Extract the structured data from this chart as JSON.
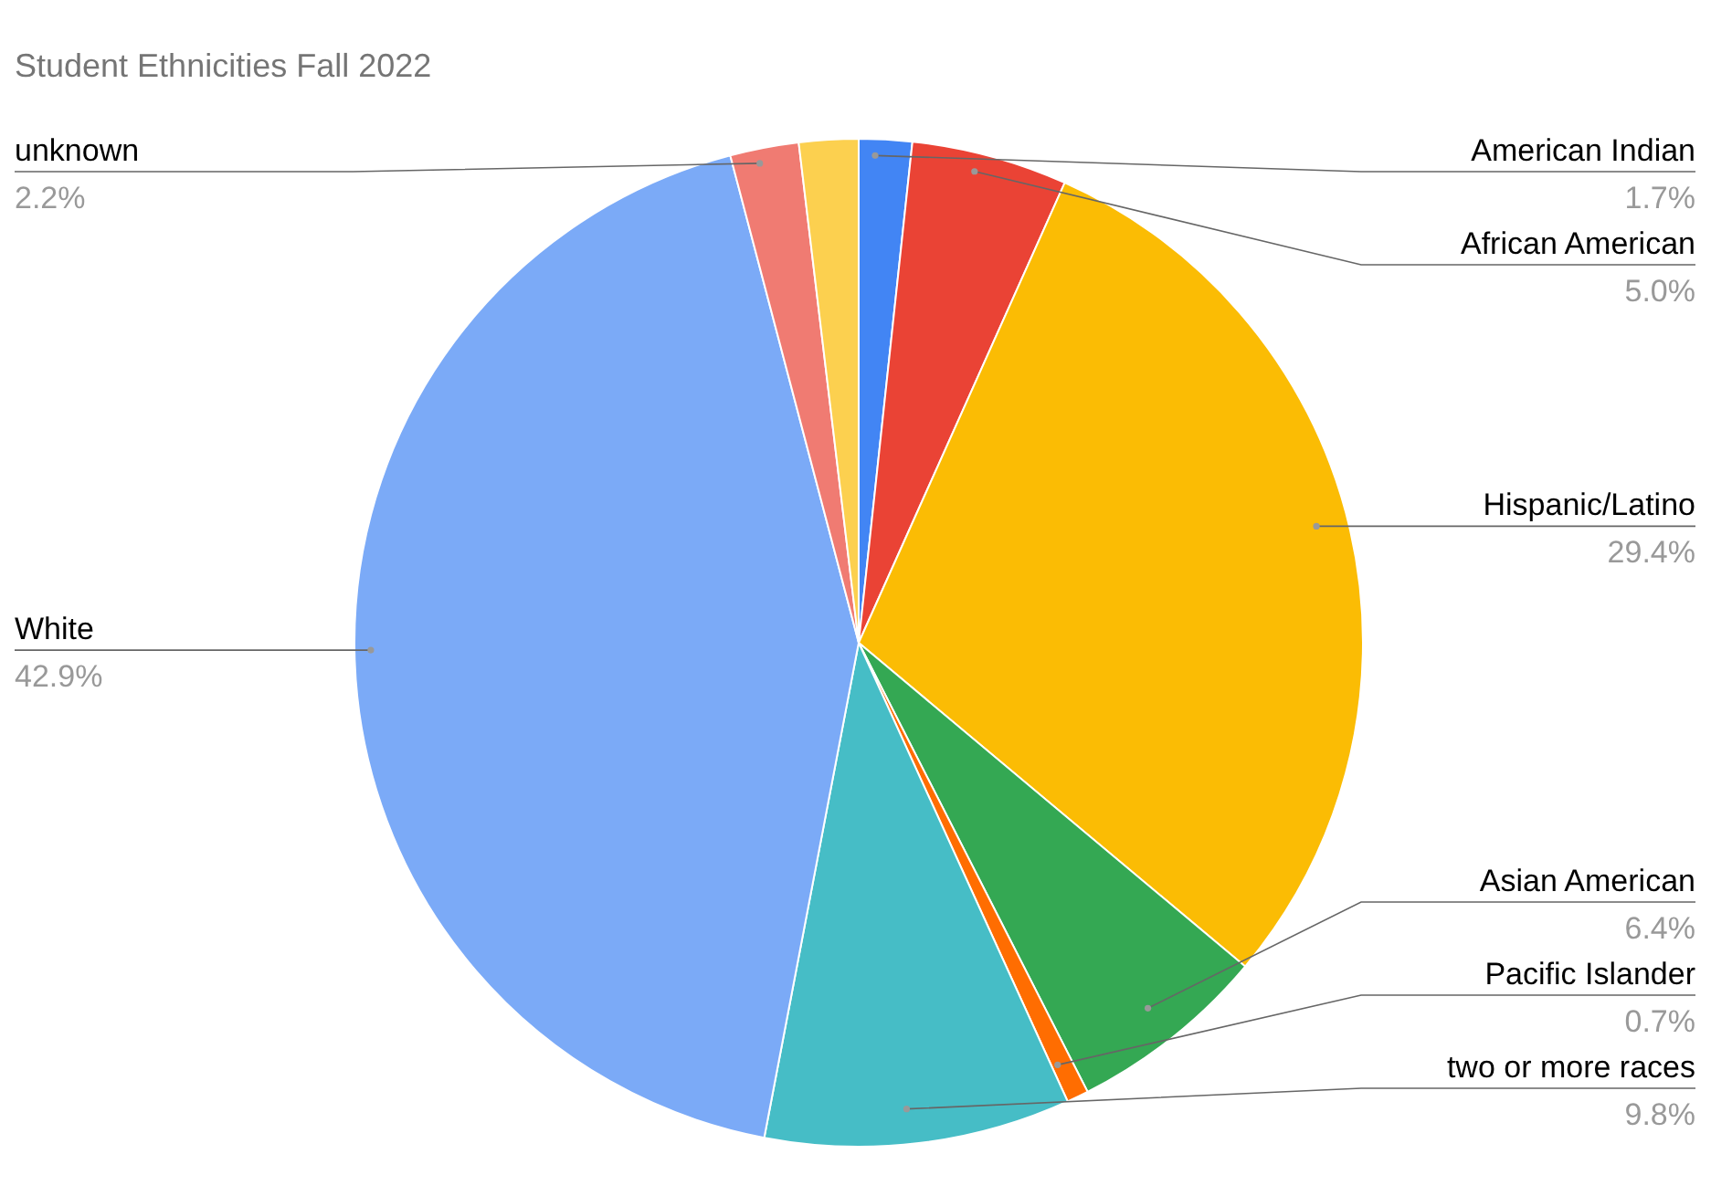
{
  "chart_data": {
    "type": "pie",
    "title": "Student Ethnicities Fall 2022",
    "categories": [
      "American Indian",
      "African American",
      "Hispanic/Latino",
      "Asian American",
      "Pacific Islander",
      "two or more races",
      "White",
      "unknown",
      null
    ],
    "values": [
      1.7,
      5.0,
      29.4,
      6.4,
      0.7,
      9.8,
      42.9,
      2.2,
      1.9
    ],
    "value_labels": [
      "1.7%",
      "5.0%",
      "29.4%",
      "6.4%",
      "0.7%",
      "9.8%",
      "42.9%",
      "2.2%",
      null
    ],
    "colors": [
      "#4285f4",
      "#ea4335",
      "#fbbc04",
      "#34a853",
      "#ff6d01",
      "#46bdc6",
      "#7baaf7",
      "#f07b72",
      "#fcd04f"
    ]
  }
}
